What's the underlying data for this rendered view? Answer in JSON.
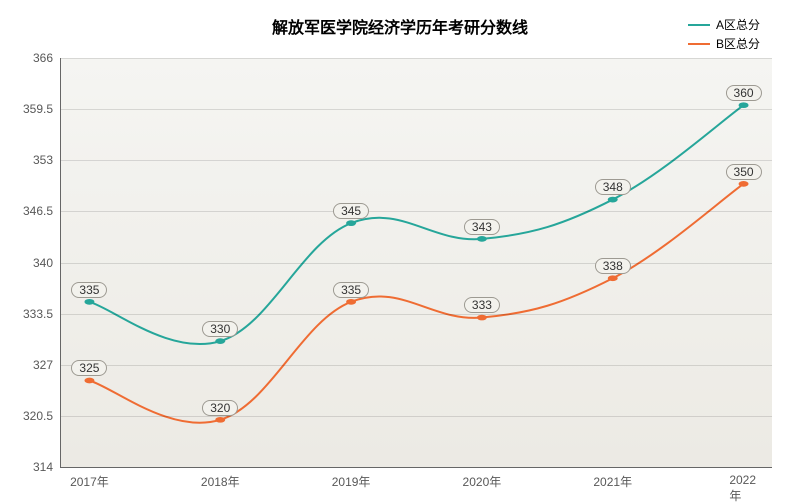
{
  "chart": {
    "type": "line",
    "title": "解放军医学院经济学历年考研分数线",
    "title_fontsize": 16,
    "title_fontweight": "bold",
    "background_gradient": [
      "#f5f5f2",
      "#eceae4"
    ],
    "grid_color": "rgba(0,0,0,0.12)",
    "axis_color": "#666666",
    "axis_label_color": "#585858",
    "axis_label_fontsize": 12,
    "categories": [
      "2017年",
      "2018年",
      "2019年",
      "2020年",
      "2021年",
      "2022年"
    ],
    "x_positions_pct": [
      4,
      22.4,
      40.8,
      59.2,
      77.6,
      96
    ],
    "ylim": [
      314,
      366
    ],
    "yticks": [
      314,
      320.5,
      327,
      333.5,
      340,
      346.5,
      353,
      359.5,
      366
    ],
    "line_width": 2,
    "point_radius": 3.5,
    "point_label_bg": "#f3f2ed",
    "point_label_border": "#9d9a92",
    "smoothing": 0.38,
    "label_dy_pct": -3,
    "series": [
      {
        "name": "A区总分",
        "color": "#26a69a",
        "values": [
          335,
          330,
          345,
          343,
          348,
          360
        ]
      },
      {
        "name": "B区总分",
        "color": "#ef6c33",
        "values": [
          325,
          320,
          335,
          333,
          338,
          350
        ]
      }
    ],
    "legend": {
      "position": "top-right",
      "fontsize": 12
    }
  }
}
